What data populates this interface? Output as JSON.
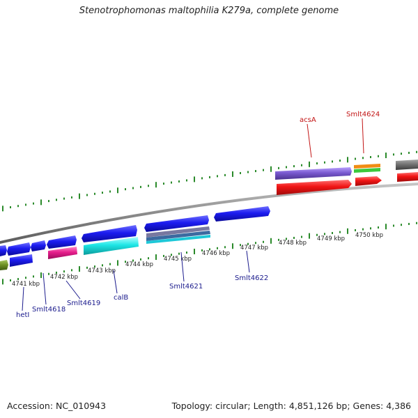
{
  "title": "Stenotrophomonas maltophilia K279a, complete genome",
  "footer": {
    "accession": "Accession: NC_010943",
    "topology": "Topology: circular; Length: 4,851,126 bp; Genes: 4,386"
  },
  "scale_labels": [
    "4741 kbp",
    "4742 kbp",
    "4743 kbp",
    "4744 kbp",
    "4745 kbp",
    "4746 kbp",
    "4747 kbp",
    "4748 kbp",
    "4749 kbp",
    "4750 kbp"
  ],
  "gene_labels_top": [
    "acsA",
    "Smlt4624"
  ],
  "gene_labels_bottom": [
    "hetI",
    "Smlt4618",
    "Smlt4619",
    "calB",
    "Smlt4621",
    "Smlt4622"
  ],
  "colors": {
    "forward_primary": "#1a1aef",
    "reverse_primary": "#ef1414",
    "cyan": "#1ee6e6",
    "magenta": "#e61e8c",
    "violet": "#7a5ad0",
    "olive": "#6b8e23",
    "orange": "#f08c14",
    "green": "#3cc83c",
    "gray": "#6e6e6e",
    "tick": "#2a8a2a",
    "backbone": "#8c8c8c"
  }
}
